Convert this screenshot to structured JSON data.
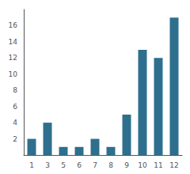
{
  "chart_data": {
    "type": "bar",
    "categories": [
      "1",
      "3",
      "5",
      "6",
      "7",
      "8",
      "9",
      "10",
      "11",
      "12"
    ],
    "values": [
      2,
      4,
      1,
      1,
      2,
      1,
      5,
      13,
      12,
      17
    ],
    "color": "#2e6f8e",
    "ylim": [
      0,
      18
    ],
    "yticks": [
      2,
      4,
      6,
      8,
      10,
      12,
      14,
      16
    ],
    "grid": false
  }
}
